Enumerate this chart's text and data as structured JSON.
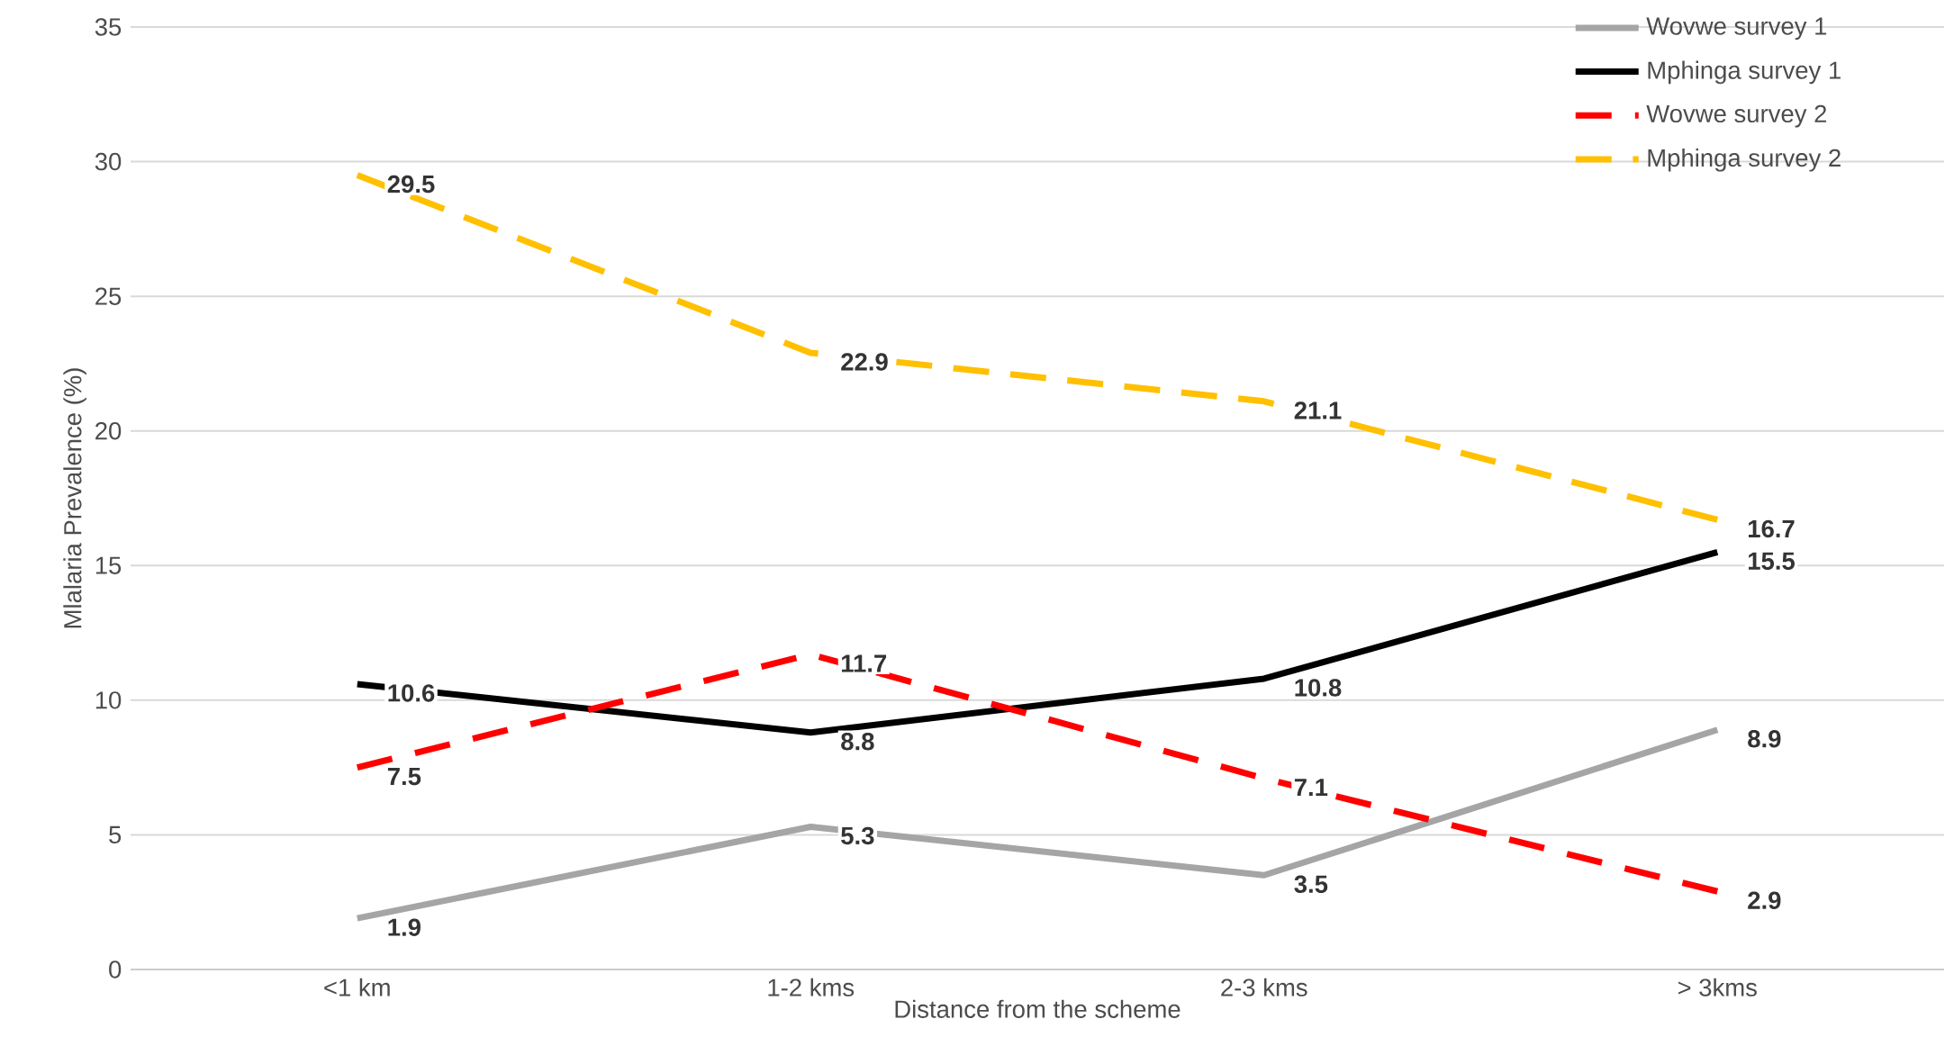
{
  "chart_data": {
    "type": "line",
    "xlabel": "Distance from the scheme",
    "ylabel": "Mlalaria Prevalence (%)",
    "categories": [
      "<1 km",
      "1-2 kms",
      "2-3 kms",
      "> 3kms"
    ],
    "series": [
      {
        "name": "Wovwe survey 1",
        "color": "#a5a5a5",
        "line_style": "solid",
        "values": [
          1.9,
          5.3,
          3.5,
          8.9
        ]
      },
      {
        "name": "Mphinga survey 1",
        "color": "#000000",
        "line_style": "solid",
        "values": [
          10.6,
          8.8,
          10.8,
          15.5
        ]
      },
      {
        "name": "Wovwe survey 2",
        "color": "#ff0000",
        "line_style": "dashed",
        "values": [
          7.5,
          11.7,
          7.1,
          2.9
        ]
      },
      {
        "name": "Mphinga survey 2",
        "color": "#ffc000",
        "line_style": "dashed",
        "values": [
          29.5,
          22.9,
          21.1,
          16.7
        ]
      }
    ],
    "ylim": [
      0,
      35
    ],
    "yticks": [
      0,
      5,
      10,
      15,
      20,
      25,
      30,
      35
    ],
    "grid": "y",
    "legend": "top right",
    "marker": "none",
    "data_labels": true
  }
}
